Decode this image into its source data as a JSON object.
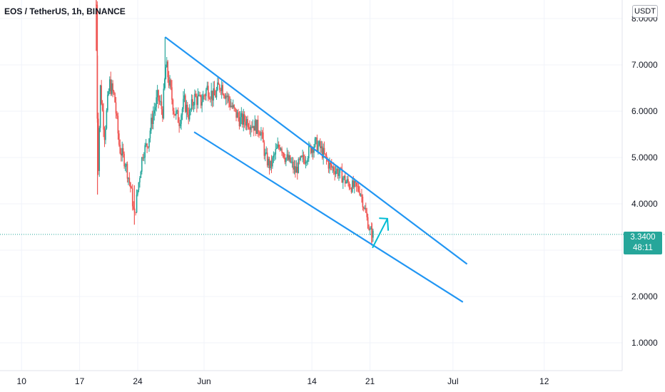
{
  "header": {
    "title": "EOS / TetherUS, 1h, BINANCE"
  },
  "price_scale": {
    "currency": "USDT",
    "last_price": "3.3400",
    "countdown": "48:11"
  },
  "colors": {
    "up": "#26a69a",
    "down": "#ef5350",
    "channel": "#2196f3",
    "arrow": "#00bcd4",
    "last_price_line": "#26a69a"
  },
  "chart_data": {
    "type": "candlestick",
    "symbol": "EOS / TetherUS",
    "interval": "1h",
    "exchange": "BINANCE",
    "ylim": [
      0.4,
      8.4
    ],
    "y_ticks": [
      "1.0000",
      "2.0000",
      "4.0000",
      "5.0000",
      "6.0000",
      "7.0000",
      "8.0000"
    ],
    "x_ticks": [
      {
        "label": "10",
        "day": 10
      },
      {
        "label": "17",
        "day": 17
      },
      {
        "label": "24",
        "day": 24
      },
      {
        "label": "Jun",
        "day": 32
      },
      {
        "label": "14",
        "day": 45
      },
      {
        "label": "21",
        "day": 52
      },
      {
        "label": "Jul",
        "day": 62
      },
      {
        "label": "12",
        "day": 73
      }
    ],
    "xlim": [
      7.4,
      82.4
    ],
    "last_price": 3.34,
    "price_path": [
      [
        19.0,
        8.3
      ],
      [
        19.2,
        4.5
      ],
      [
        19.5,
        6.5
      ],
      [
        20.0,
        5.5
      ],
      [
        20.6,
        6.6
      ],
      [
        21.2,
        6.3
      ],
      [
        21.8,
        5.2
      ],
      [
        22.5,
        4.9
      ],
      [
        23.2,
        4.3
      ],
      [
        23.6,
        3.7
      ],
      [
        24.0,
        4.3
      ],
      [
        24.6,
        5.1
      ],
      [
        25.2,
        5.3
      ],
      [
        25.8,
        5.9
      ],
      [
        26.4,
        6.3
      ],
      [
        27.0,
        6.0
      ],
      [
        27.4,
        7.0
      ],
      [
        27.8,
        6.6
      ],
      [
        28.4,
        6.0
      ],
      [
        29.0,
        5.8
      ],
      [
        29.6,
        6.2
      ],
      [
        30.2,
        5.9
      ],
      [
        30.8,
        6.3
      ],
      [
        31.6,
        6.2
      ],
      [
        32.4,
        6.5
      ],
      [
        33.2,
        6.3
      ],
      [
        34.0,
        6.6
      ],
      [
        34.8,
        6.3
      ],
      [
        35.6,
        6.0
      ],
      [
        36.4,
        5.8
      ],
      [
        37.2,
        5.8
      ],
      [
        38.0,
        5.7
      ],
      [
        38.8,
        5.6
      ],
      [
        39.4,
        5.0
      ],
      [
        40.0,
        4.8
      ],
      [
        40.6,
        5.1
      ],
      [
        41.2,
        5.3
      ],
      [
        41.8,
        5.0
      ],
      [
        42.4,
        4.9
      ],
      [
        43.0,
        4.7
      ],
      [
        43.6,
        4.9
      ],
      [
        44.2,
        5.0
      ],
      [
        44.8,
        5.2
      ],
      [
        45.4,
        5.3
      ],
      [
        46.0,
        5.2
      ],
      [
        46.6,
        5.0
      ],
      [
        47.2,
        4.8
      ],
      [
        47.8,
        4.75
      ],
      [
        48.4,
        4.65
      ],
      [
        49.0,
        4.5
      ],
      [
        49.6,
        4.4
      ],
      [
        50.2,
        4.35
      ],
      [
        50.8,
        4.3
      ],
      [
        51.2,
        4.0
      ],
      [
        51.6,
        3.7
      ],
      [
        52.0,
        3.4
      ],
      [
        52.4,
        3.34
      ]
    ]
  }
}
